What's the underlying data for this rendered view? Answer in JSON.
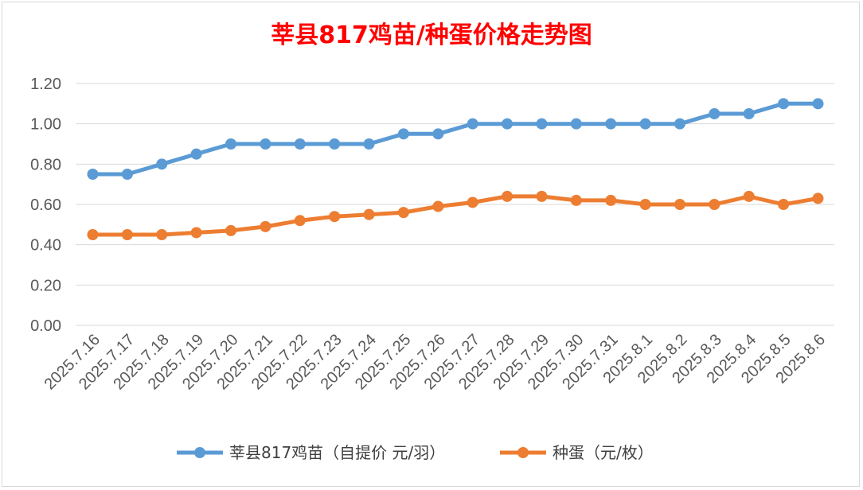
{
  "chart_data": {
    "type": "line",
    "title": "莘县817鸡苗/种蛋价格走势图",
    "categories": [
      "2025.7.16",
      "2025.7.17",
      "2025.7.18",
      "2025.7.19",
      "2025.7.20",
      "2025.7.21",
      "2025.7.22",
      "2025.7.23",
      "2025.7.24",
      "2025.7.25",
      "2025.7.26",
      "2025.7.27",
      "2025.7.28",
      "2025.7.29",
      "2025.7.30",
      "2025.7.31",
      "2025.8.1",
      "2025.8.2",
      "2025.8.3",
      "2025.8.4",
      "2025.8.5",
      "2025.8.6"
    ],
    "series": [
      {
        "name": "莘县817鸡苗（自提价 元/羽）",
        "color": "#5b9bd5",
        "values": [
          0.75,
          0.75,
          0.8,
          0.85,
          0.9,
          0.9,
          0.9,
          0.9,
          0.9,
          0.95,
          0.95,
          1.0,
          1.0,
          1.0,
          1.0,
          1.0,
          1.0,
          1.0,
          1.05,
          1.05,
          1.1,
          1.1
        ]
      },
      {
        "name": "种蛋（元/枚）",
        "color": "#ed7d31",
        "values": [
          0.45,
          0.45,
          0.45,
          0.46,
          0.47,
          0.49,
          0.52,
          0.54,
          0.55,
          0.56,
          0.59,
          0.61,
          0.64,
          0.64,
          0.62,
          0.62,
          0.6,
          0.6,
          0.6,
          0.64,
          0.6,
          0.63
        ]
      }
    ],
    "yticks": [
      "0.00",
      "0.20",
      "0.40",
      "0.60",
      "0.80",
      "1.00",
      "1.20"
    ],
    "ylim": [
      0,
      1.2
    ],
    "grid": true,
    "legend": "bottom"
  }
}
